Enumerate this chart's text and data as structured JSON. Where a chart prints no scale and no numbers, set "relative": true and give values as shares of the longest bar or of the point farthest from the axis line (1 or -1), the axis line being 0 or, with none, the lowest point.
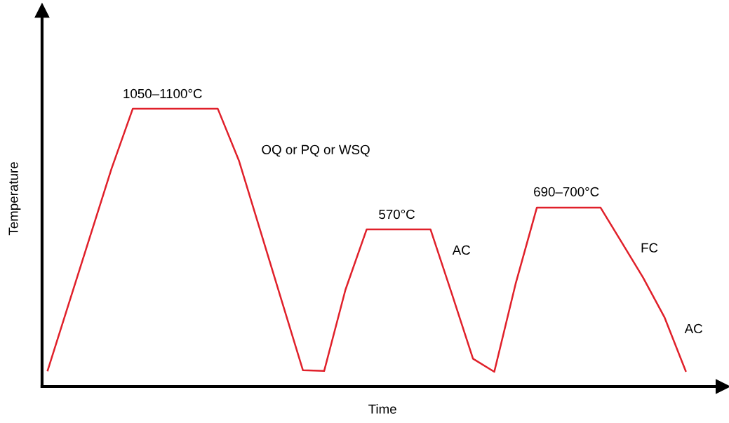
{
  "chart_data": {
    "type": "line",
    "relative": true,
    "xlabel": "Time",
    "ylabel": "Temperature",
    "line_style": "solid",
    "tick_labels": false,
    "categories": [
      null,
      null,
      null,
      null,
      null,
      null,
      null,
      null,
      null,
      null,
      null,
      null,
      null,
      null,
      null,
      null,
      null,
      null,
      null,
      null,
      null,
      null,
      null,
      null,
      null,
      null,
      null,
      null,
      null,
      null,
      null
    ],
    "series": [
      {
        "color": "#e0202a",
        "values": [
          0.058,
          0.3,
          0.542,
          0.784,
          1,
          1,
          1,
          1,
          1,
          0.812,
          0.561,
          0.31,
          0.059,
          0.056,
          0.348,
          0.566,
          0.566,
          0.566,
          0.566,
          0.335,
          0.1,
          0.053,
          0.369,
          0.644,
          0.644,
          0.644,
          0.644,
          0.518,
          0.392,
          0.25,
          0.056
        ]
      }
    ],
    "annotations": [
      "1050–1100°C",
      "OQ or PQ or WSQ",
      "570°C",
      "AC",
      "690–700°C",
      "FC",
      "AC"
    ]
  }
}
